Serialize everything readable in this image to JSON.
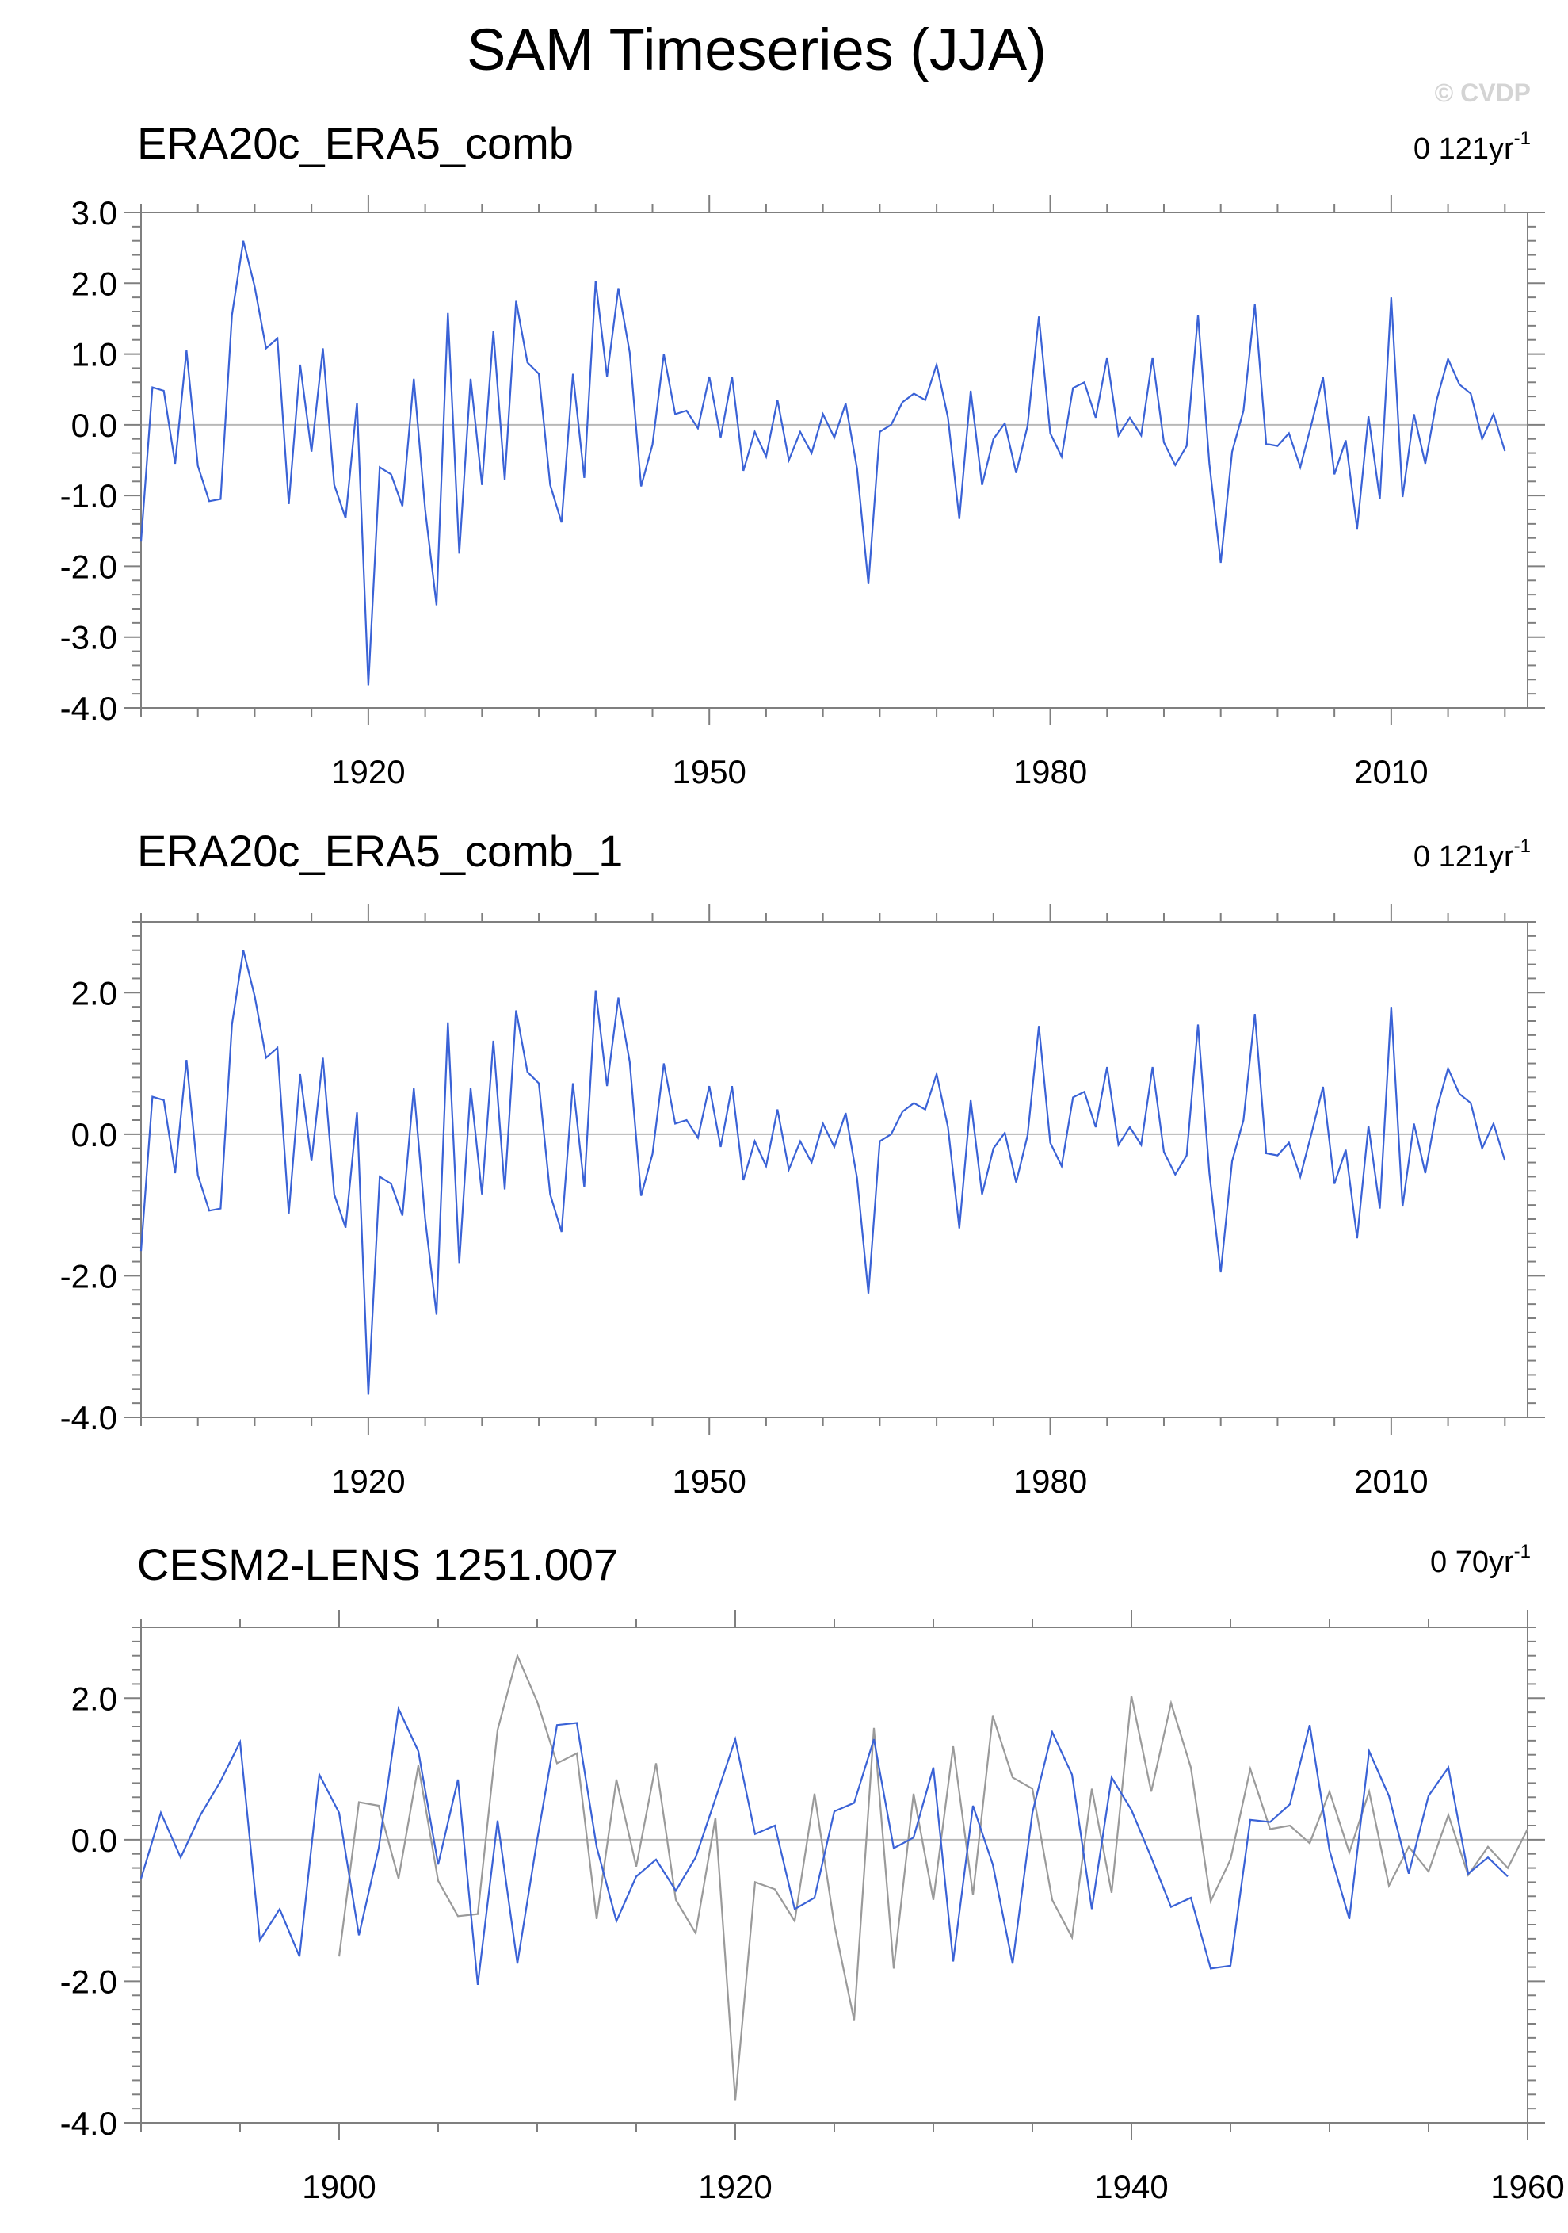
{
  "figure": {
    "title": "SAM Timeseries (JJA)",
    "watermark": "© CVDP"
  },
  "colors": {
    "series_primary": "#3a62d6",
    "series_reference": "#9a9a9a",
    "zero_line": "#b8b8b8",
    "axis": "#7f7f7f",
    "text": "#000000",
    "watermark": "#d4d4d4"
  },
  "chart_data": [
    {
      "type": "line",
      "title": "ERA20c_ERA5_comb",
      "trend_label": {
        "value": "0 121yr",
        "superscript": "-1"
      },
      "xlim": [
        1900,
        2022
      ],
      "ylim": [
        -4,
        3
      ],
      "x_ticks": [
        1920,
        1950,
        1980,
        2010
      ],
      "y_ticks": [
        3,
        2,
        1,
        0,
        -1,
        -2,
        -3,
        -4
      ],
      "y_tick_labels": [
        "3.0",
        "2.0",
        "1.0",
        "0.0",
        "-1.0",
        "-2.0",
        "-3.0",
        "-4.0"
      ],
      "x_start": 1900,
      "series": [
        {
          "role": "primary",
          "values": [
            -1.65,
            0.53,
            0.48,
            -0.55,
            1.05,
            -0.58,
            -1.08,
            -1.05,
            1.55,
            2.6,
            1.95,
            1.08,
            1.22,
            -1.12,
            0.85,
            -0.38,
            1.08,
            -0.85,
            -1.32,
            0.31,
            -3.68,
            -0.6,
            -0.7,
            -1.15,
            0.65,
            -1.2,
            -2.55,
            1.58,
            -1.82,
            0.65,
            -0.85,
            1.32,
            -0.78,
            1.75,
            0.88,
            0.72,
            -0.85,
            -1.38,
            0.72,
            -0.75,
            2.03,
            0.68,
            1.93,
            1.02,
            -0.87,
            -0.28,
            1.0,
            0.15,
            0.2,
            -0.05,
            0.68,
            -0.18,
            0.68,
            -0.65,
            -0.1,
            -0.45,
            0.35,
            -0.5,
            -0.1,
            -0.4,
            0.15,
            -0.18,
            0.3,
            -0.62,
            -2.25,
            -0.1,
            0.0,
            0.32,
            0.44,
            0.35,
            0.85,
            0.1,
            -1.33,
            0.48,
            -0.85,
            -0.2,
            0.02,
            -0.68,
            -0.02,
            1.53,
            -0.12,
            -0.45,
            0.52,
            0.6,
            0.1,
            0.95,
            -0.15,
            0.1,
            -0.15,
            0.95,
            -0.25,
            -0.57,
            -0.3,
            1.55,
            -0.55,
            -1.95,
            -0.38,
            0.2,
            1.7,
            -0.27,
            -0.3,
            -0.12,
            -0.6,
            0.02,
            0.67,
            -0.7,
            -0.22,
            -1.47,
            0.12,
            -1.05,
            1.8,
            -1.02,
            0.15,
            -0.55,
            0.35,
            0.93,
            0.57,
            0.44,
            -0.2,
            0.15,
            -0.37
          ]
        }
      ]
    },
    {
      "type": "line",
      "title": "ERA20c_ERA5_comb_1",
      "trend_label": {
        "value": "0 121yr",
        "superscript": "-1"
      },
      "xlim": [
        1900,
        2022
      ],
      "ylim": [
        -4,
        3
      ],
      "x_ticks": [
        1920,
        1950,
        1980,
        2010
      ],
      "y_ticks": [
        2,
        0,
        -2,
        -4
      ],
      "y_tick_labels": [
        "2.0",
        "0.0",
        "-2.0",
        "-4.0"
      ],
      "x_start": 1900,
      "series": [
        {
          "role": "primary",
          "values": [
            -1.65,
            0.53,
            0.48,
            -0.55,
            1.05,
            -0.58,
            -1.08,
            -1.05,
            1.55,
            2.6,
            1.95,
            1.08,
            1.22,
            -1.12,
            0.85,
            -0.38,
            1.08,
            -0.85,
            -1.32,
            0.31,
            -3.68,
            -0.6,
            -0.7,
            -1.15,
            0.65,
            -1.2,
            -2.55,
            1.58,
            -1.82,
            0.65,
            -0.85,
            1.32,
            -0.78,
            1.75,
            0.88,
            0.72,
            -0.85,
            -1.38,
            0.72,
            -0.75,
            2.03,
            0.68,
            1.93,
            1.02,
            -0.87,
            -0.28,
            1.0,
            0.15,
            0.2,
            -0.05,
            0.68,
            -0.18,
            0.68,
            -0.65,
            -0.1,
            -0.45,
            0.35,
            -0.5,
            -0.1,
            -0.4,
            0.15,
            -0.18,
            0.3,
            -0.62,
            -2.25,
            -0.1,
            0.0,
            0.32,
            0.44,
            0.35,
            0.85,
            0.1,
            -1.33,
            0.48,
            -0.85,
            -0.2,
            0.02,
            -0.68,
            -0.02,
            1.53,
            -0.12,
            -0.45,
            0.52,
            0.6,
            0.1,
            0.95,
            -0.15,
            0.1,
            -0.15,
            0.95,
            -0.25,
            -0.57,
            -0.3,
            1.55,
            -0.55,
            -1.95,
            -0.38,
            0.2,
            1.7,
            -0.27,
            -0.3,
            -0.12,
            -0.6,
            0.02,
            0.67,
            -0.7,
            -0.22,
            -1.47,
            0.12,
            -1.05,
            1.8,
            -1.02,
            0.15,
            -0.55,
            0.35,
            0.93,
            0.57,
            0.44,
            -0.2,
            0.15,
            -0.37
          ]
        }
      ]
    },
    {
      "type": "line",
      "title": "CESM2-LENS 1251.007",
      "trend_label": {
        "value": "0 70yr",
        "superscript": "-1"
      },
      "xlim": [
        1890,
        1960
      ],
      "ylim": [
        -4,
        3
      ],
      "x_ticks": [
        1900,
        1920,
        1940,
        1960
      ],
      "y_ticks": [
        2,
        0,
        -2,
        -4
      ],
      "y_tick_labels": [
        "2.0",
        "0.0",
        "-2.0",
        "-4.0"
      ],
      "series": [
        {
          "role": "primary",
          "x_start": 1890,
          "values": [
            -0.55,
            0.38,
            -0.25,
            0.35,
            0.82,
            1.38,
            -1.42,
            -0.98,
            -1.65,
            0.92,
            0.38,
            -1.35,
            -0.12,
            1.85,
            1.25,
            -0.35,
            0.85,
            -2.05,
            0.27,
            -1.75,
            0.0,
            1.62,
            1.65,
            -0.1,
            -1.15,
            -0.52,
            -0.28,
            -0.72,
            -0.25,
            0.58,
            1.42,
            0.08,
            0.2,
            -0.98,
            -0.82,
            0.4,
            0.52,
            1.42,
            -0.12,
            0.03,
            1.02,
            -1.72,
            0.48,
            -0.35,
            -1.75,
            0.38,
            1.52,
            0.92,
            -0.98,
            0.88,
            0.42,
            -0.25,
            -0.95,
            -0.82,
            -1.82,
            -1.78,
            0.28,
            0.25,
            0.5,
            1.62,
            -0.15,
            -1.12,
            1.25,
            0.62,
            -0.48,
            0.62,
            1.02,
            -0.48,
            -0.25,
            -0.52
          ]
        },
        {
          "role": "reference",
          "x_start": 1900,
          "values": [
            -1.65,
            0.53,
            0.48,
            -0.55,
            1.05,
            -0.58,
            -1.08,
            -1.05,
            1.55,
            2.6,
            1.95,
            1.08,
            1.22,
            -1.12,
            0.85,
            -0.38,
            1.08,
            -0.85,
            -1.32,
            0.31,
            -3.68,
            -0.6,
            -0.7,
            -1.15,
            0.65,
            -1.2,
            -2.55,
            1.58,
            -1.82,
            0.65,
            -0.85,
            1.32,
            -0.78,
            1.75,
            0.88,
            0.72,
            -0.85,
            -1.38,
            0.72,
            -0.75,
            2.03,
            0.68,
            1.93,
            1.02,
            -0.87,
            -0.28,
            1.0,
            0.15,
            0.2,
            -0.05,
            0.68,
            -0.18,
            0.68,
            -0.65,
            -0.1,
            -0.45,
            0.35,
            -0.5,
            -0.1,
            -0.4,
            0.15
          ]
        }
      ]
    }
  ]
}
